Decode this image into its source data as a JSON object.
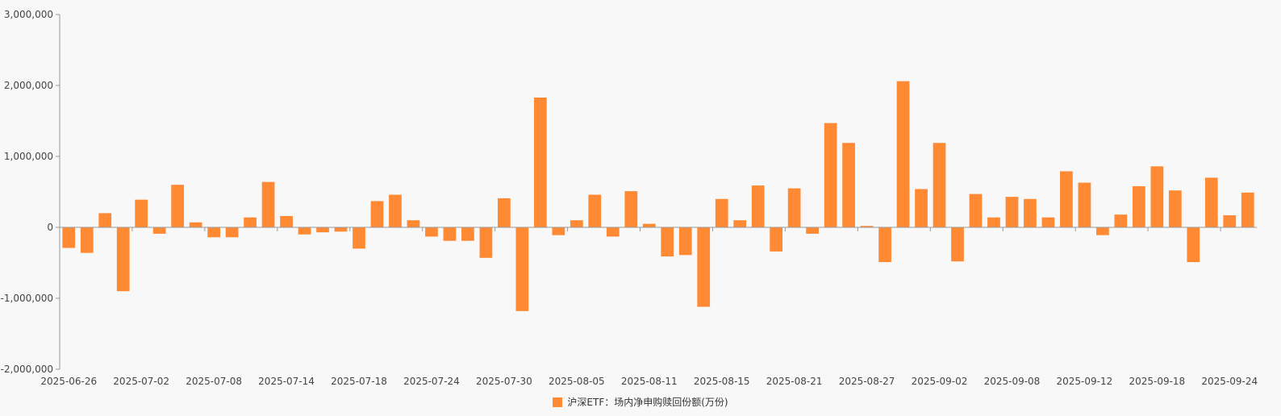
{
  "chart_data": {
    "type": "bar",
    "categories": [
      "2025-06-26",
      "2025-06-27",
      "2025-06-30",
      "2025-07-01",
      "2025-07-02",
      "2025-07-03",
      "2025-07-04",
      "2025-07-07",
      "2025-07-08",
      "2025-07-09",
      "2025-07-10",
      "2025-07-11",
      "2025-07-14",
      "2025-07-15",
      "2025-07-16",
      "2025-07-17",
      "2025-07-18",
      "2025-07-21",
      "2025-07-22",
      "2025-07-23",
      "2025-07-24",
      "2025-07-25",
      "2025-07-28",
      "2025-07-29",
      "2025-07-30",
      "2025-07-31",
      "2025-08-01",
      "2025-08-04",
      "2025-08-05",
      "2025-08-06",
      "2025-08-07",
      "2025-08-08",
      "2025-08-11",
      "2025-08-12",
      "2025-08-13",
      "2025-08-14",
      "2025-08-15",
      "2025-08-18",
      "2025-08-19",
      "2025-08-20",
      "2025-08-21",
      "2025-08-22",
      "2025-08-25",
      "2025-08-26",
      "2025-08-27",
      "2025-08-28",
      "2025-08-29",
      "2025-09-01",
      "2025-09-02",
      "2025-09-03",
      "2025-09-04",
      "2025-09-05",
      "2025-09-08",
      "2025-09-09",
      "2025-09-10",
      "2025-09-11",
      "2025-09-12",
      "2025-09-15",
      "2025-09-16",
      "2025-09-17",
      "2025-09-18",
      "2025-09-19",
      "2025-09-22",
      "2025-09-23",
      "2025-09-24",
      "2025-09-25"
    ],
    "values": [
      -290000,
      -360000,
      200000,
      -900000,
      390000,
      -90000,
      600000,
      70000,
      -140000,
      -140000,
      140000,
      640000,
      160000,
      -100000,
      -70000,
      -60000,
      -300000,
      370000,
      460000,
      100000,
      -130000,
      -190000,
      -190000,
      -430000,
      410000,
      -1180000,
      1830000,
      -110000,
      100000,
      460000,
      -130000,
      510000,
      50000,
      -410000,
      -390000,
      -1120000,
      400000,
      100000,
      590000,
      -340000,
      550000,
      -90000,
      1470000,
      1190000,
      20000,
      -490000,
      2060000,
      540000,
      1190000,
      -480000,
      470000,
      140000,
      430000,
      400000,
      140000,
      790000,
      630000,
      -110000,
      180000,
      580000,
      860000,
      520000,
      -490000,
      700000,
      170000,
      490000
    ],
    "xtick_labels": [
      "2025-06-26",
      "2025-07-02",
      "2025-07-08",
      "2025-07-14",
      "2025-07-18",
      "2025-07-24",
      "2025-07-30",
      "2025-08-05",
      "2025-08-11",
      "2025-08-15",
      "2025-08-21",
      "2025-08-27",
      "2025-09-02",
      "2025-09-08",
      "2025-09-12",
      "2025-09-18",
      "2025-09-24"
    ],
    "ytick_labels": [
      "3,000,000",
      "2,000,000",
      "1,000,000",
      "0",
      "-1,000,000",
      "-2,000,000"
    ],
    "yticks": [
      3000000,
      2000000,
      1000000,
      0,
      -1000000,
      -2000000
    ],
    "ylim": [
      -2000000,
      3000000
    ],
    "series_name": "沪深ETF：场内净申购赎回份额(万份)",
    "title": "",
    "xlabel": "",
    "ylabel": "",
    "grid": false,
    "legend_position": "bottom-center",
    "bar_color": "#ff8a33",
    "axis_color": "#999999",
    "text_color": "#444444"
  }
}
